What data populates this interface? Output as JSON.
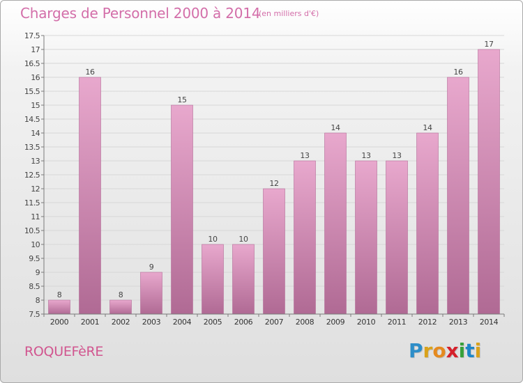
{
  "header": {
    "title": "Charges de Personnel 2000 à 2014",
    "subtitle": "(en milliers d'€)"
  },
  "footer": {
    "commune": "ROQUEFèRE",
    "logo_letters": [
      "P",
      "r",
      "o",
      "x",
      "i",
      "t",
      "i"
    ],
    "logo_colors": [
      "#2e8ec9",
      "#d9a21b",
      "#e58a1f",
      "#d5202b",
      "#36a03a",
      "#1e86c8",
      "#d9a21b"
    ]
  },
  "colors": {
    "bar_top": "#e8a8cd",
    "bar_bottom": "#b06a94",
    "bar_stroke": "#b46d98",
    "grid": "#d7d7d7",
    "axis": "#7a7a7a"
  },
  "chart_data": {
    "type": "bar",
    "categories": [
      "2000",
      "2001",
      "2002",
      "2003",
      "2004",
      "2005",
      "2006",
      "2007",
      "2008",
      "2009",
      "2010",
      "2011",
      "2012",
      "2013",
      "2014"
    ],
    "values": [
      8,
      16,
      8,
      9,
      15,
      10,
      10,
      12,
      13,
      14,
      13,
      13,
      14,
      16,
      17
    ],
    "data_labels": [
      "8",
      "16",
      "8",
      "9",
      "15",
      "10",
      "10",
      "12",
      "13",
      "14",
      "13",
      "13",
      "14",
      "16",
      "17"
    ],
    "yticks": [
      "7.5",
      "8",
      "8.5",
      "9",
      "9.5",
      "10",
      "10.5",
      "11",
      "11.5",
      "12",
      "12.5",
      "13",
      "13.5",
      "14",
      "14.5",
      "15",
      "15.5",
      "16",
      "16.5",
      "17",
      "17.5"
    ],
    "ylim": [
      7.5,
      17.5
    ],
    "grid": true,
    "title": "Charges de Personnel 2000 à 2014",
    "xlabel": "",
    "ylabel": ""
  }
}
